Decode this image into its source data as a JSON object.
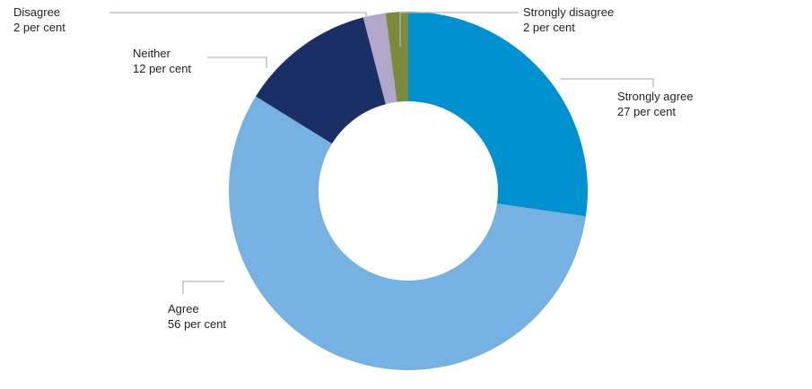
{
  "chart_data": {
    "type": "pie",
    "subtype": "donut",
    "unit": "per cent",
    "start_angle_deg": 0,
    "direction": "clockwise",
    "inner_radius_ratio": 0.5,
    "legend_position": "none",
    "categories": [
      "Strongly agree",
      "Agree",
      "Neither",
      "Disagree",
      "Strongly disagree"
    ],
    "values": [
      27,
      56,
      12,
      2,
      2
    ],
    "slices": [
      {
        "label": "Strongly agree",
        "value": 27,
        "value_text": "27 per cent",
        "color": "#0091D0"
      },
      {
        "label": "Agree",
        "value": 56,
        "value_text": "56 per cent",
        "color": "#76B2E1"
      },
      {
        "label": "Neither",
        "value": 12,
        "value_text": "12 per cent",
        "color": "#1A2F66"
      },
      {
        "label": "Disagree",
        "value": 2,
        "value_text": "2 per cent",
        "color": "#B2A7CB"
      },
      {
        "label": "Strongly disagree",
        "value": 2,
        "value_text": "2 per cent",
        "color": "#7C8A3C"
      }
    ],
    "callout_line_color": "#B9B6AE",
    "text_color": "#231F20",
    "background_color": "#FFFFFF"
  }
}
